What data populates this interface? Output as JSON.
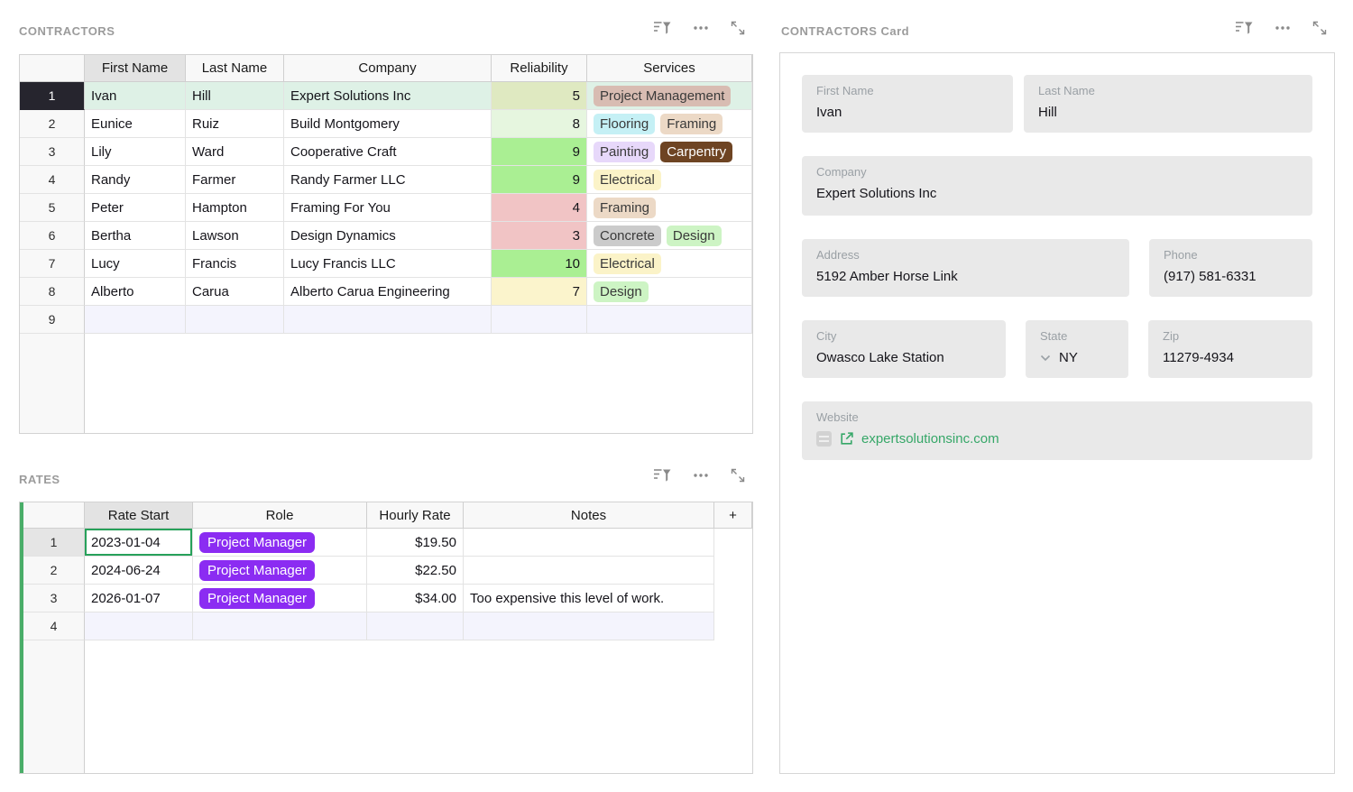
{
  "contractors": {
    "title": "CONTRACTORS",
    "columns": [
      "First Name",
      "Last Name",
      "Company",
      "Reliability",
      "Services"
    ],
    "selected_column_index": 0,
    "rows": [
      {
        "num": "1",
        "first_name": "Ivan",
        "last_name": "Hill",
        "company": "Expert Solutions Inc",
        "reliability": "5",
        "services": [
          "Project Management"
        ],
        "selected": true
      },
      {
        "num": "2",
        "first_name": "Eunice",
        "last_name": "Ruiz",
        "company": "Build Montgomery",
        "reliability": "8",
        "services": [
          "Flooring",
          "Framing"
        ]
      },
      {
        "num": "3",
        "first_name": "Lily",
        "last_name": "Ward",
        "company": "Cooperative Craft",
        "reliability": "9",
        "services": [
          "Painting",
          "Carpentry"
        ]
      },
      {
        "num": "4",
        "first_name": "Randy",
        "last_name": "Farmer",
        "company": "Randy Farmer LLC",
        "reliability": "9",
        "services": [
          "Electrical"
        ]
      },
      {
        "num": "5",
        "first_name": "Peter",
        "last_name": "Hampton",
        "company": "Framing For You",
        "reliability": "4",
        "services": [
          "Framing"
        ]
      },
      {
        "num": "6",
        "first_name": "Bertha",
        "last_name": "Lawson",
        "company": "Design Dynamics",
        "reliability": "3",
        "services": [
          "Concrete",
          "Design"
        ]
      },
      {
        "num": "7",
        "first_name": "Lucy",
        "last_name": "Francis",
        "company": "Lucy Francis LLC",
        "reliability": "10",
        "services": [
          "Electrical"
        ]
      },
      {
        "num": "8",
        "first_name": "Alberto",
        "last_name": "Carua",
        "company": "Alberto Carua Engineering",
        "reliability": "7",
        "services": [
          "Design"
        ]
      },
      {
        "num": "9",
        "first_name": "",
        "last_name": "",
        "company": "",
        "reliability": "",
        "services": [],
        "empty": true
      }
    ]
  },
  "rates": {
    "title": "RATES",
    "columns": [
      "Rate Start",
      "Role",
      "Hourly Rate",
      "Notes",
      "+"
    ],
    "selected_column_index": 0,
    "rows": [
      {
        "num": "1",
        "rate_start": "2023-01-04",
        "role": "Project Manager",
        "hourly_rate": "$19.50",
        "notes": "",
        "active": true
      },
      {
        "num": "2",
        "rate_start": "2024-06-24",
        "role": "Project Manager",
        "hourly_rate": "$22.50",
        "notes": ""
      },
      {
        "num": "3",
        "rate_start": "2026-01-07",
        "role": "Project Manager",
        "hourly_rate": "$34.00",
        "notes": "Too expensive this level of work."
      },
      {
        "num": "4",
        "rate_start": "",
        "role": "",
        "hourly_rate": "",
        "notes": "",
        "empty": true
      }
    ]
  },
  "card": {
    "title": "CONTRACTORS Card",
    "fields": {
      "first_name": {
        "label": "First Name",
        "value": "Ivan"
      },
      "last_name": {
        "label": "Last Name",
        "value": "Hill"
      },
      "company": {
        "label": "Company",
        "value": "Expert Solutions Inc"
      },
      "address": {
        "label": "Address",
        "value": "5192 Amber Horse Link"
      },
      "phone": {
        "label": "Phone",
        "value": "(917) 581-6331"
      },
      "city": {
        "label": "City",
        "value": "Owasco Lake Station"
      },
      "state": {
        "label": "State",
        "value": "NY"
      },
      "zip": {
        "label": "Zip",
        "value": "11279-4934"
      },
      "website": {
        "label": "Website",
        "value": "expertsolutionsinc.com"
      }
    }
  },
  "widget_icons": [
    "sort-filter-icon",
    "more-options-icon",
    "expand-icon"
  ],
  "colors": {
    "selection_tint": "#def1e6",
    "empty_row_tint": "#f4f4fd",
    "selected_row_number_bg": "#26252e",
    "accent_green": "#49ad68",
    "active_cell_border": "#27a15a",
    "role_pill": "#8b2cf2",
    "link_green": "#36a768",
    "reliability": {
      "3": "#f1c4c5",
      "4": "#f1c4c5",
      "5": "#dfe9c1",
      "7": "#fbf4cc",
      "8": "#e6f6df",
      "9": "#aaef93",
      "10": "#aaef93"
    },
    "tags": {
      "Project Management": {
        "bg": "#d8bcb2",
        "fg": "#3a3a3a"
      },
      "Flooring": {
        "bg": "#c5f0f5",
        "fg": "#3a3a3a"
      },
      "Framing": {
        "bg": "#ecd9c6",
        "fg": "#3a3a3a"
      },
      "Painting": {
        "bg": "#e7d8fa",
        "fg": "#3a3a3a"
      },
      "Carpentry": {
        "bg": "#6e4423",
        "fg": "#ffffff"
      },
      "Electrical": {
        "bg": "#fbf3c8",
        "fg": "#3a3a3a"
      },
      "Concrete": {
        "bg": "#cbcbcb",
        "fg": "#3a3a3a"
      },
      "Design": {
        "bg": "#cdf4c4",
        "fg": "#3a3a3a"
      }
    }
  }
}
